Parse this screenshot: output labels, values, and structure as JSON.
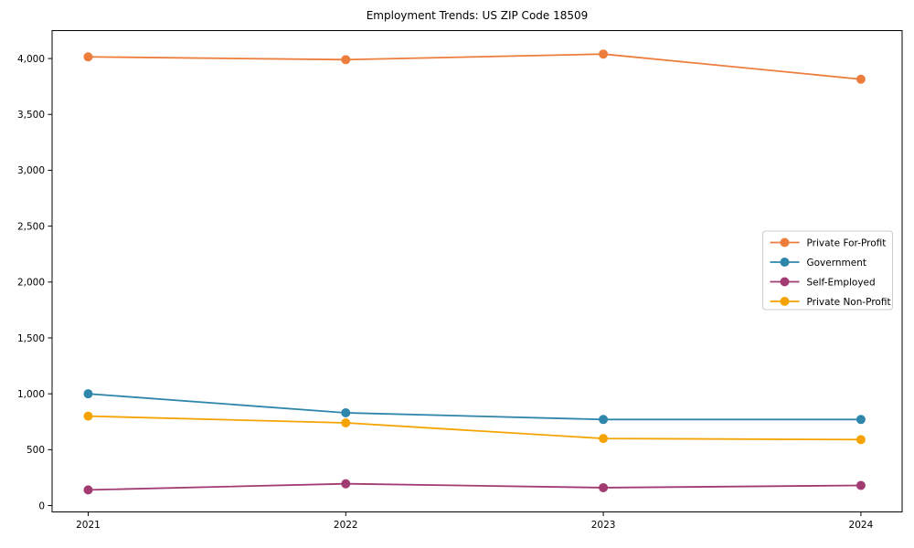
{
  "chart_data": {
    "type": "line",
    "title": "Employment Trends: US ZIP Code 18509",
    "x": [
      2021,
      2022,
      2023,
      2024
    ],
    "x_tick_labels": [
      "2021",
      "2022",
      "2023",
      "2024"
    ],
    "y_ticks": [
      0,
      500,
      1000,
      1500,
      2000,
      2500,
      3000,
      3500,
      4000
    ],
    "y_tick_labels": [
      "0",
      "500",
      "1,000",
      "1,500",
      "2,000",
      "2,500",
      "3,000",
      "3,500",
      "4,000"
    ],
    "series": [
      {
        "name": "Private For-Profit",
        "color": "#ED7D3C",
        "values": [
          4015,
          3990,
          4040,
          3815
        ]
      },
      {
        "name": "Government",
        "color": "#2E86AB",
        "values": [
          1000,
          830,
          770,
          770
        ]
      },
      {
        "name": "Self-Employed",
        "color": "#A23B72",
        "values": [
          140,
          195,
          160,
          180
        ]
      },
      {
        "name": "Private Non-Profit",
        "color": "#F5A300",
        "values": [
          800,
          740,
          600,
          590
        ]
      }
    ],
    "xlabel": "",
    "ylabel": "",
    "xlim": [
      2020.86,
      2024.16
    ],
    "ylim": [
      -57,
      4250
    ],
    "grid": false,
    "legend_position": "center-right",
    "axes_color": "#000000",
    "text_color": "#000000",
    "background_color": "#ffffff"
  }
}
